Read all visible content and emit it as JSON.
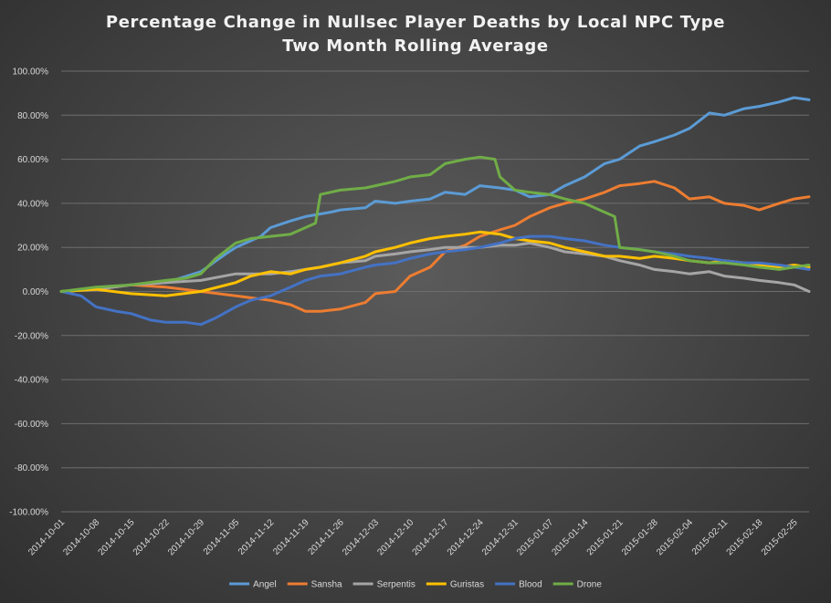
{
  "chart_data": {
    "type": "line",
    "title": "Percentage Change in Nullsec Player Deaths by Local NPC Type",
    "subtitle": "Two Month Rolling Average",
    "xlabel": "",
    "ylabel": "",
    "ylim": [
      -100,
      100
    ],
    "y_ticks": [
      "100.00%",
      "80.00%",
      "60.00%",
      "40.00%",
      "20.00%",
      "0.00%",
      "-20.00%",
      "-40.00%",
      "-60.00%",
      "-80.00%",
      "-100.00%"
    ],
    "x_ticks": [
      "2014-10-01",
      "2014-10-08",
      "2014-10-15",
      "2014-10-22",
      "2014-10-29",
      "2014-11-05",
      "2014-11-12",
      "2014-11-19",
      "2014-11-26",
      "2014-12-03",
      "2014-12-10",
      "2014-12-17",
      "2014-12-24",
      "2014-12-31",
      "2015-01-07",
      "2015-01-14",
      "2015-01-21",
      "2015-01-28",
      "2015-02-04",
      "2015-02-11",
      "2015-02-18",
      "2015-02-25"
    ],
    "x_start": "2014-10-01",
    "x_end": "2015-02-28",
    "grid": "horizontal",
    "legend_position": "bottom",
    "series": [
      {
        "name": "Angel",
        "color": "#5b9bd5",
        "x": [
          "2014-10-01",
          "2014-10-08",
          "2014-10-15",
          "2014-10-22",
          "2014-10-29",
          "2014-11-03",
          "2014-11-05",
          "2014-11-10",
          "2014-11-12",
          "2014-11-16",
          "2014-11-19",
          "2014-11-24",
          "2014-11-26",
          "2014-12-01",
          "2014-12-03",
          "2014-12-07",
          "2014-12-10",
          "2014-12-14",
          "2014-12-17",
          "2014-12-21",
          "2014-12-24",
          "2014-12-28",
          "2014-12-31",
          "2015-01-03",
          "2015-01-07",
          "2015-01-10",
          "2015-01-14",
          "2015-01-18",
          "2015-01-21",
          "2015-01-25",
          "2015-01-28",
          "2015-02-01",
          "2015-02-04",
          "2015-02-08",
          "2015-02-11",
          "2015-02-15",
          "2015-02-18",
          "2015-02-22",
          "2015-02-25",
          "2015-02-28"
        ],
        "values": [
          0,
          1,
          3,
          4,
          9,
          17,
          20,
          25,
          29,
          32,
          34,
          36,
          37,
          38,
          41,
          40,
          41,
          42,
          45,
          44,
          48,
          47,
          46,
          43,
          44,
          48,
          52,
          58,
          60,
          66,
          68,
          71,
          74,
          81,
          80,
          83,
          84,
          86,
          88,
          87
        ]
      },
      {
        "name": "Sansha",
        "color": "#ed7d31",
        "x": [
          "2014-10-01",
          "2014-10-08",
          "2014-10-15",
          "2014-10-22",
          "2014-10-29",
          "2014-11-05",
          "2014-11-12",
          "2014-11-16",
          "2014-11-19",
          "2014-11-22",
          "2014-11-26",
          "2014-12-01",
          "2014-12-03",
          "2014-12-07",
          "2014-12-10",
          "2014-12-14",
          "2014-12-17",
          "2014-12-21",
          "2014-12-24",
          "2014-12-28",
          "2014-12-31",
          "2015-01-03",
          "2015-01-07",
          "2015-01-10",
          "2015-01-14",
          "2015-01-18",
          "2015-01-21",
          "2015-01-25",
          "2015-01-28",
          "2015-02-01",
          "2015-02-04",
          "2015-02-08",
          "2015-02-11",
          "2015-02-15",
          "2015-02-18",
          "2015-02-22",
          "2015-02-25",
          "2015-02-28"
        ],
        "values": [
          0,
          1,
          3,
          2,
          0,
          -2,
          -4,
          -6,
          -9,
          -9,
          -8,
          -5,
          -1,
          0,
          7,
          11,
          18,
          21,
          25,
          28,
          30,
          34,
          38,
          40,
          42,
          45,
          48,
          49,
          50,
          47,
          42,
          43,
          40,
          39,
          37,
          40,
          42,
          43
        ]
      },
      {
        "name": "Serpentis",
        "color": "#a5a5a5",
        "x": [
          "2014-10-01",
          "2014-10-08",
          "2014-10-15",
          "2014-10-22",
          "2014-10-29",
          "2014-11-05",
          "2014-11-12",
          "2014-11-16",
          "2014-11-19",
          "2014-11-22",
          "2014-11-26",
          "2014-12-01",
          "2014-12-03",
          "2014-12-07",
          "2014-12-10",
          "2014-12-14",
          "2014-12-17",
          "2014-12-21",
          "2014-12-24",
          "2014-12-28",
          "2014-12-31",
          "2015-01-03",
          "2015-01-07",
          "2015-01-10",
          "2015-01-14",
          "2015-01-18",
          "2015-01-21",
          "2015-01-25",
          "2015-01-28",
          "2015-02-01",
          "2015-02-04",
          "2015-02-08",
          "2015-02-11",
          "2015-02-15",
          "2015-02-18",
          "2015-02-22",
          "2015-02-25",
          "2015-02-28"
        ],
        "values": [
          0,
          1,
          3,
          4,
          5,
          8,
          8,
          9,
          10,
          11,
          13,
          14,
          16,
          17,
          18,
          19,
          20,
          20,
          20,
          21,
          21,
          22,
          20,
          18,
          17,
          16,
          14,
          12,
          10,
          9,
          8,
          9,
          7,
          6,
          5,
          4,
          3,
          0
        ]
      },
      {
        "name": "Guristas",
        "color": "#ffc000",
        "x": [
          "2014-10-01",
          "2014-10-08",
          "2014-10-15",
          "2014-10-22",
          "2014-10-29",
          "2014-11-05",
          "2014-11-08",
          "2014-11-12",
          "2014-11-16",
          "2014-11-19",
          "2014-11-22",
          "2014-11-26",
          "2014-12-01",
          "2014-12-03",
          "2014-12-07",
          "2014-12-10",
          "2014-12-14",
          "2014-12-17",
          "2014-12-21",
          "2014-12-24",
          "2014-12-28",
          "2014-12-31",
          "2015-01-03",
          "2015-01-07",
          "2015-01-10",
          "2015-01-14",
          "2015-01-18",
          "2015-01-21",
          "2015-01-25",
          "2015-01-28",
          "2015-02-01",
          "2015-02-04",
          "2015-02-08",
          "2015-02-11",
          "2015-02-15",
          "2015-02-18",
          "2015-02-22",
          "2015-02-25",
          "2015-02-28"
        ],
        "values": [
          0,
          1,
          -1,
          -2,
          0,
          4,
          7,
          9,
          8,
          10,
          11,
          13,
          16,
          18,
          20,
          22,
          24,
          25,
          26,
          27,
          26,
          24,
          23,
          22,
          20,
          18,
          16,
          16,
          15,
          16,
          15,
          14,
          13,
          14,
          13,
          12,
          11,
          12,
          11
        ]
      },
      {
        "name": "Blood",
        "color": "#4472c4",
        "x": [
          "2014-10-01",
          "2014-10-05",
          "2014-10-08",
          "2014-10-12",
          "2014-10-15",
          "2014-10-19",
          "2014-10-22",
          "2014-10-26",
          "2014-10-29",
          "2014-11-01",
          "2014-11-05",
          "2014-11-08",
          "2014-11-12",
          "2014-11-16",
          "2014-11-19",
          "2014-11-22",
          "2014-11-26",
          "2014-12-01",
          "2014-12-03",
          "2014-12-07",
          "2014-12-10",
          "2014-12-14",
          "2014-12-17",
          "2014-12-21",
          "2014-12-24",
          "2014-12-28",
          "2014-12-31",
          "2015-01-03",
          "2015-01-07",
          "2015-01-10",
          "2015-01-14",
          "2015-01-18",
          "2015-01-21",
          "2015-01-25",
          "2015-01-28",
          "2015-02-01",
          "2015-02-04",
          "2015-02-08",
          "2015-02-11",
          "2015-02-15",
          "2015-02-18",
          "2015-02-22",
          "2015-02-25",
          "2015-02-28"
        ],
        "values": [
          0,
          -2,
          -7,
          -9,
          -10,
          -13,
          -14,
          -14,
          -15,
          -12,
          -7,
          -4,
          -2,
          2,
          5,
          7,
          8,
          11,
          12,
          13,
          15,
          17,
          18,
          19,
          20,
          22,
          24,
          25,
          25,
          24,
          23,
          21,
          20,
          19,
          18,
          17,
          16,
          15,
          14,
          13,
          13,
          12,
          11,
          10
        ]
      },
      {
        "name": "Drone",
        "color": "#70ad47",
        "x": [
          "2014-10-01",
          "2014-10-08",
          "2014-10-15",
          "2014-10-22",
          "2014-10-26",
          "2014-10-29",
          "2014-11-01",
          "2014-11-05",
          "2014-11-08",
          "2014-11-12",
          "2014-11-16",
          "2014-11-19",
          "2014-11-21",
          "2014-11-22",
          "2014-11-26",
          "2014-12-01",
          "2014-12-03",
          "2014-12-07",
          "2014-12-10",
          "2014-12-14",
          "2014-12-17",
          "2014-12-21",
          "2014-12-24",
          "2014-12-27",
          "2014-12-28",
          "2014-12-31",
          "2015-01-03",
          "2015-01-07",
          "2015-01-10",
          "2015-01-14",
          "2015-01-18",
          "2015-01-20",
          "2015-01-21",
          "2015-01-25",
          "2015-01-28",
          "2015-02-01",
          "2015-02-04",
          "2015-02-08",
          "2015-02-11",
          "2015-02-15",
          "2015-02-18",
          "2015-02-22",
          "2015-02-25",
          "2015-02-28"
        ],
        "values": [
          0,
          2,
          3,
          5,
          6,
          8,
          15,
          22,
          24,
          25,
          26,
          29,
          31,
          44,
          46,
          47,
          48,
          50,
          52,
          53,
          58,
          60,
          61,
          60,
          52,
          46,
          45,
          44,
          42,
          40,
          36,
          34,
          20,
          19,
          18,
          16,
          14,
          13,
          13,
          12,
          11,
          10,
          11,
          12
        ]
      }
    ]
  }
}
